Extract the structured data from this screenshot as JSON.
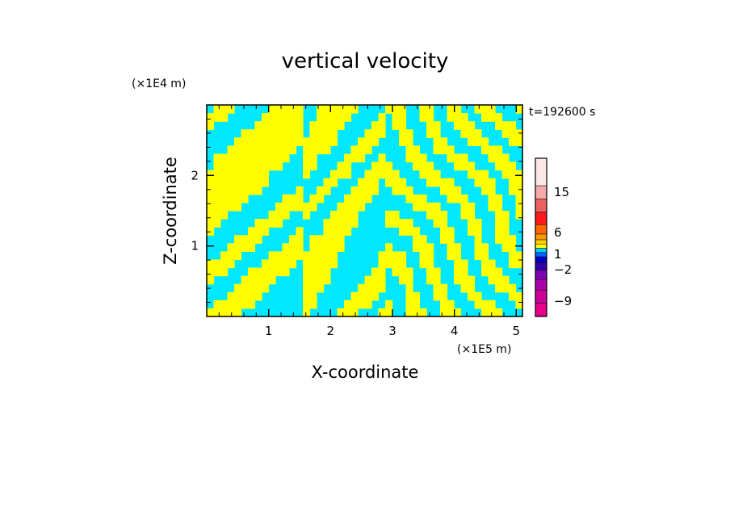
{
  "chart_data": {
    "type": "heatmap",
    "title": "vertical velocity",
    "xlabel": "X-coordinate",
    "ylabel": "Z-coordinate",
    "x_unit": "(×1E5 m)",
    "y_unit": "(×1E4 m)",
    "time_label": "t=192600 s",
    "xlim": [
      0,
      5.1
    ],
    "ylim": [
      0,
      3.0
    ],
    "x_ticks": [
      1,
      2,
      3,
      4,
      5
    ],
    "y_ticks": [
      1,
      2
    ],
    "grid": false,
    "legend": "right",
    "field_colors": {
      "positive_small": "#ffff00",
      "negative_small": "#00e8ff"
    },
    "colorbar": {
      "bins": [
        {
          "color": "#e6008c"
        },
        {
          "color": "#cc0099"
        },
        {
          "color": "#aa00aa"
        },
        {
          "color": "#7a00b0"
        },
        {
          "color": "#3300aa"
        },
        {
          "color": "#0000cc"
        },
        {
          "color": "#0060ff"
        },
        {
          "color": "#00d0ff"
        },
        {
          "color": "#ffff00"
        },
        {
          "color": "#ffd000"
        },
        {
          "color": "#ff9900"
        },
        {
          "color": "#ff6600"
        },
        {
          "color": "#ff1a1a"
        },
        {
          "color": "#ee6060"
        },
        {
          "color": "#f5aaaa"
        },
        {
          "color": "#fde6e6"
        }
      ],
      "labels": [
        "15",
        "6",
        "1",
        "−2",
        "−9"
      ]
    }
  }
}
